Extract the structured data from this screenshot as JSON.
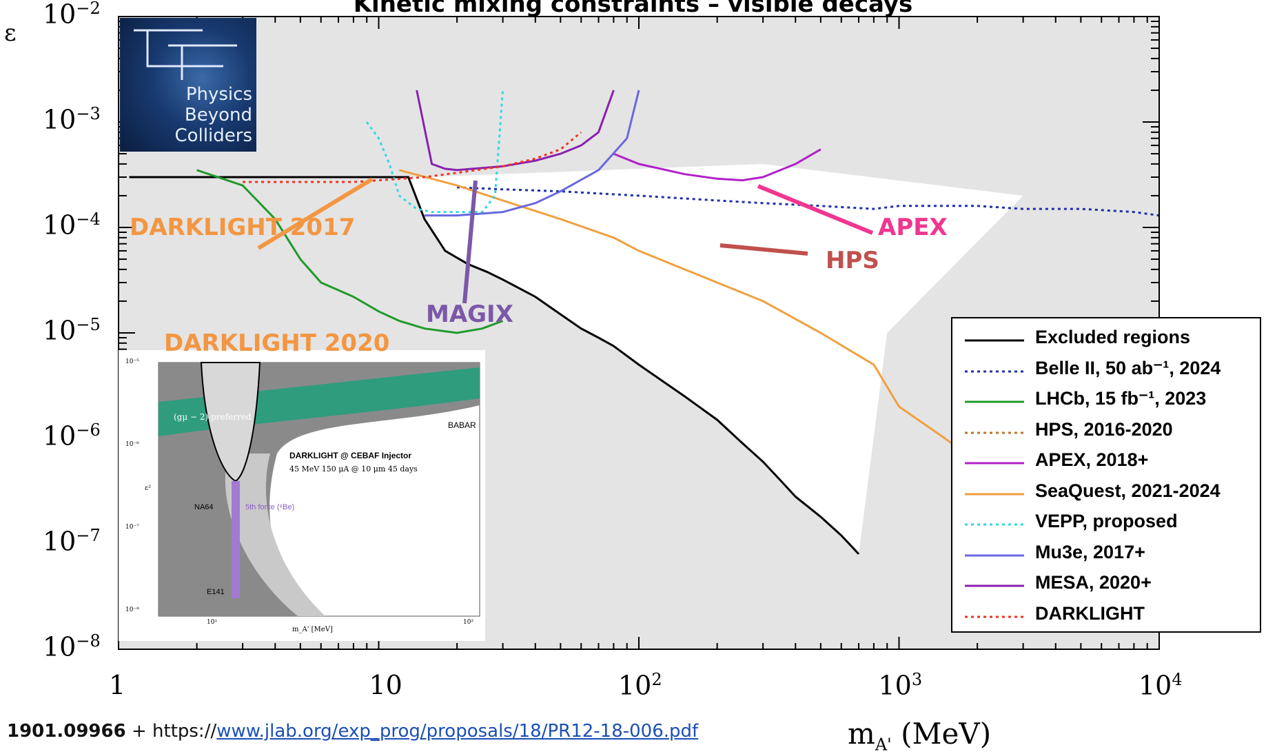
{
  "chart_data": {
    "type": "line",
    "title": "Kinetic mixing constraints – visible decays",
    "ylabel": "ε",
    "xlabel": "m",
    "xlabel_sub": "A'",
    "xlabel_unit": "(MeV)",
    "x_scale": "log",
    "y_scale": "log",
    "xlim": [
      1,
      10000
    ],
    "ylim": [
      1e-08,
      0.01
    ],
    "x_ticks": [
      {
        "value": 1,
        "base": "1",
        "exp": ""
      },
      {
        "value": 10,
        "base": "10",
        "exp": ""
      },
      {
        "value": 100,
        "base": "10",
        "exp": "2"
      },
      {
        "value": 1000,
        "base": "10",
        "exp": "3"
      },
      {
        "value": 10000,
        "base": "10",
        "exp": "4"
      }
    ],
    "y_ticks": [
      {
        "value": 0.01,
        "exp": "−2"
      },
      {
        "value": 0.001,
        "exp": "−3"
      },
      {
        "value": 0.0001,
        "exp": "−4"
      },
      {
        "value": 1e-05,
        "exp": "−5"
      },
      {
        "value": 1e-06,
        "exp": "−6"
      },
      {
        "value": 1e-07,
        "exp": "−7"
      },
      {
        "value": 1e-08,
        "exp": "−8"
      }
    ],
    "legend_position": "bottom-right",
    "legend": [
      {
        "label": "Excluded regions",
        "color": "#000000",
        "dash": "solid"
      },
      {
        "label": "Belle II, 50 ab⁻¹, 2024",
        "color": "#1f2fa8",
        "dash": "dotted"
      },
      {
        "label": "LHCb, 15 fb⁻¹, 2023",
        "color": "#1f9a2a",
        "dash": "solid"
      },
      {
        "label": "HPS, 2016-2020",
        "color": "#b8762a",
        "dash": "dotted"
      },
      {
        "label": "APEX, 2018+",
        "color": "#b020c8",
        "dash": "solid"
      },
      {
        "label": "SeaQuest, 2021-2024",
        "color": "#f0a040",
        "dash": "solid"
      },
      {
        "label": "VEPP, proposed",
        "color": "#30d8e0",
        "dash": "dotted"
      },
      {
        "label": "Mu3e, 2017+",
        "color": "#6868e0",
        "dash": "solid"
      },
      {
        "label": "MESA, 2020+",
        "color": "#8a20b0",
        "dash": "solid"
      },
      {
        "label": "DARKLIGHT",
        "color": "#ee3322",
        "dash": "dotted"
      }
    ],
    "annotations": [
      {
        "text": "DARKLIGHT 2017",
        "color": "#f39642"
      },
      {
        "text": "DARKLIGHT 2020",
        "color": "#f39642"
      },
      {
        "text": "MAGIX",
        "color": "#7b58a8"
      },
      {
        "text": "APEX",
        "color": "#f0368f"
      },
      {
        "text": "HPS",
        "color": "#c0504d"
      }
    ],
    "series": [
      {
        "key": "excluded",
        "color": "#000000",
        "dash": "solid",
        "x": [
          1.1,
          2,
          4,
          7,
          10,
          13,
          15,
          18,
          22,
          26,
          30,
          40,
          50,
          60,
          70,
          80,
          100,
          150,
          200,
          250,
          300,
          350,
          400,
          500,
          600,
          700
        ],
        "y": [
          0.0003,
          0.0003,
          0.0003,
          0.0003,
          0.0003,
          0.0003,
          0.00012,
          6e-05,
          4.5e-05,
          3.8e-05,
          3.2e-05,
          2.2e-05,
          1.5e-05,
          1.1e-05,
          9e-06,
          7.5e-06,
          5e-06,
          2.5e-06,
          1.5e-06,
          9e-07,
          6e-07,
          4e-07,
          2.8e-07,
          1.8e-07,
          1.2e-07,
          8e-08
        ]
      },
      {
        "key": "belle",
        "color": "#1f2fa8",
        "dash": "dotted",
        "x": [
          20,
          30,
          50,
          100,
          200,
          300,
          500,
          800,
          1000,
          2000,
          3000,
          5000,
          8000,
          10000
        ],
        "y": [
          0.00024,
          0.00023,
          0.00022,
          0.0002,
          0.00018,
          0.00017,
          0.00016,
          0.00015,
          0.00016,
          0.00016,
          0.00015,
          0.00015,
          0.00014,
          0.00013
        ]
      },
      {
        "key": "lhcb",
        "color": "#1f9a2a",
        "dash": "solid",
        "x": [
          2,
          3,
          4,
          5,
          6,
          8,
          10,
          12,
          15,
          20,
          25,
          30
        ],
        "y": [
          0.00035,
          0.00025,
          0.00012,
          5e-05,
          3e-05,
          2.2e-05,
          1.6e-05,
          1.3e-05,
          1.1e-05,
          1e-05,
          1.1e-05,
          1.3e-05
        ]
      },
      {
        "key": "apex",
        "color": "#b020c8",
        "dash": "solid",
        "x": [
          80,
          100,
          150,
          200,
          250,
          300,
          400,
          500
        ],
        "y": [
          0.0005,
          0.0004,
          0.00032,
          0.00029,
          0.00028,
          0.0003,
          0.0004,
          0.00055
        ]
      },
      {
        "key": "seaquest",
        "color": "#f0a040",
        "dash": "solid",
        "x": [
          12,
          20,
          30,
          50,
          80,
          100,
          150,
          200,
          300,
          500,
          800,
          1000,
          1500,
          2000
        ],
        "y": [
          0.00035,
          0.00025,
          0.00018,
          0.00012,
          8e-05,
          6e-05,
          4e-05,
          3e-05,
          2e-05,
          1e-05,
          5e-06,
          2e-06,
          1e-06,
          6e-07
        ]
      },
      {
        "key": "vepp",
        "color": "#30d8e0",
        "dash": "dotted",
        "x": [
          9,
          10,
          11,
          12,
          14,
          16,
          20,
          25,
          28,
          30
        ],
        "y": [
          0.001,
          0.0007,
          0.0004,
          0.0002,
          0.00015,
          0.00014,
          0.00014,
          0.00014,
          0.0002,
          0.002
        ]
      },
      {
        "key": "mu3e",
        "color": "#6868e0",
        "dash": "solid",
        "x": [
          15,
          20,
          30,
          40,
          50,
          70,
          90,
          100
        ],
        "y": [
          0.00013,
          0.00013,
          0.00014,
          0.00017,
          0.00022,
          0.00035,
          0.0007,
          0.002
        ]
      },
      {
        "key": "mesa",
        "color": "#8a20b0",
        "dash": "solid",
        "x": [
          14,
          16,
          18,
          20,
          30,
          40,
          50,
          60,
          70,
          80
        ],
        "y": [
          0.002,
          0.0004,
          0.00036,
          0.00035,
          0.00038,
          0.00043,
          0.0005,
          0.0006,
          0.0008,
          0.002
        ]
      },
      {
        "key": "darklight",
        "color": "#ee3322",
        "dash": "dotted",
        "x": [
          3,
          5,
          8,
          10,
          15,
          20,
          30,
          40,
          50,
          60
        ],
        "y": [
          0.00027,
          0.00027,
          0.00027,
          0.00028,
          0.0003,
          0.00033,
          0.00038,
          0.00045,
          0.00055,
          0.0008
        ]
      }
    ]
  },
  "logo": {
    "line1": "Physics",
    "line2": "Beyond",
    "line3": "Colliders"
  },
  "inset": {
    "preferred": "(gμ − 2)-preferred",
    "babar": "BABAR",
    "darklight": "DARKLIGHT @ CEBAF Injector",
    "params": "45 MeV 150 μA @ 10 μm 45 days",
    "na64": "NA64",
    "fifth_force": "5th force (⁸Be)",
    "e141": "E141",
    "yaxis": "ε²",
    "xaxis": "m_A' [MeV]",
    "y_ticks": [
      "10⁻⁵",
      "10⁻⁶",
      "10⁻⁷",
      "10⁻⁸"
    ],
    "x_ticks": [
      "10¹",
      "10²"
    ]
  },
  "source": {
    "bold": "1901.09966",
    "plus": " + https://",
    "link": "www.jlab.org/exp_prog/proposals/18/PR12-18-006.pdf"
  }
}
